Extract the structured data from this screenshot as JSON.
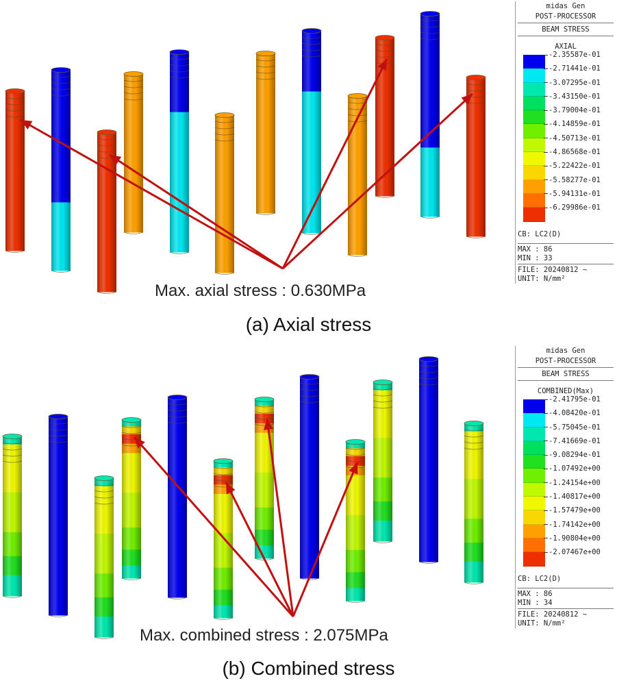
{
  "panel_a": {
    "legend": {
      "program": "midas Gen",
      "module": "POST-PROCESSOR",
      "result": "BEAM STRESS",
      "mode": "AXIAL",
      "levels": [
        {
          "label": "-2.35587e-01",
          "color": "#0000ee"
        },
        {
          "label": "-2.71441e-01",
          "color": "#00e8f0"
        },
        {
          "label": "-3.07295e-01",
          "color": "#00e8b0"
        },
        {
          "label": "-3.43150e-01",
          "color": "#00e060"
        },
        {
          "label": "-3.79004e-01",
          "color": "#20e020"
        },
        {
          "label": "-4.14859e-01",
          "color": "#70f000"
        },
        {
          "label": "-4.50713e-01",
          "color": "#c0f800"
        },
        {
          "label": "-4.86568e-01",
          "color": "#f0f800"
        },
        {
          "label": "-5.22422e-01",
          "color": "#f8d800"
        },
        {
          "label": "-5.58277e-01",
          "color": "#ffa000"
        },
        {
          "label": "-5.94131e-01",
          "color": "#ff7000"
        },
        {
          "label": "-6.29986e-01",
          "color": "#ee3000"
        }
      ],
      "cb": "CB: LC2(D)",
      "max": "MAX : 86",
      "min": "MIN : 33",
      "file": "FILE: 20240812 ~",
      "unit": "UNIT: N/mm²"
    },
    "annotation": "Max. axial stress : 0.630MPa",
    "caption": "(a) Axial stress"
  },
  "panel_b": {
    "legend": {
      "program": "midas Gen",
      "module": "POST-PROCESSOR",
      "result": "BEAM STRESS",
      "mode": "COMBINED(Max)",
      "levels": [
        {
          "label": "-2.41795e-01",
          "color": "#0000ee"
        },
        {
          "label": "-4.08420e-01",
          "color": "#00e8f0"
        },
        {
          "label": "-5.75045e-01",
          "color": "#00e8b0"
        },
        {
          "label": "-7.41669e-01",
          "color": "#00e060"
        },
        {
          "label": "-9.08294e-01",
          "color": "#20e020"
        },
        {
          "label": "-1.07492e+00",
          "color": "#70f000"
        },
        {
          "label": "-1.24154e+00",
          "color": "#c0f800"
        },
        {
          "label": "-1.40817e+00",
          "color": "#f0f800"
        },
        {
          "label": "-1.57479e+00",
          "color": "#f8d800"
        },
        {
          "label": "-1.74142e+00",
          "color": "#ffa000"
        },
        {
          "label": "-1.90804e+00",
          "color": "#ff7000"
        },
        {
          "label": "-2.07467e+00",
          "color": "#ee3000"
        }
      ],
      "cb": "CB: LC2(D)",
      "max": "MAX : 86",
      "min": "MIN : 34",
      "file": "FILE: 20240812 ~",
      "unit": "UNIT: N/mm²"
    },
    "annotation": "Max. combined stress : 2.075MPa",
    "caption": "(b) Combined stress"
  },
  "arrow_color": "#c01010"
}
